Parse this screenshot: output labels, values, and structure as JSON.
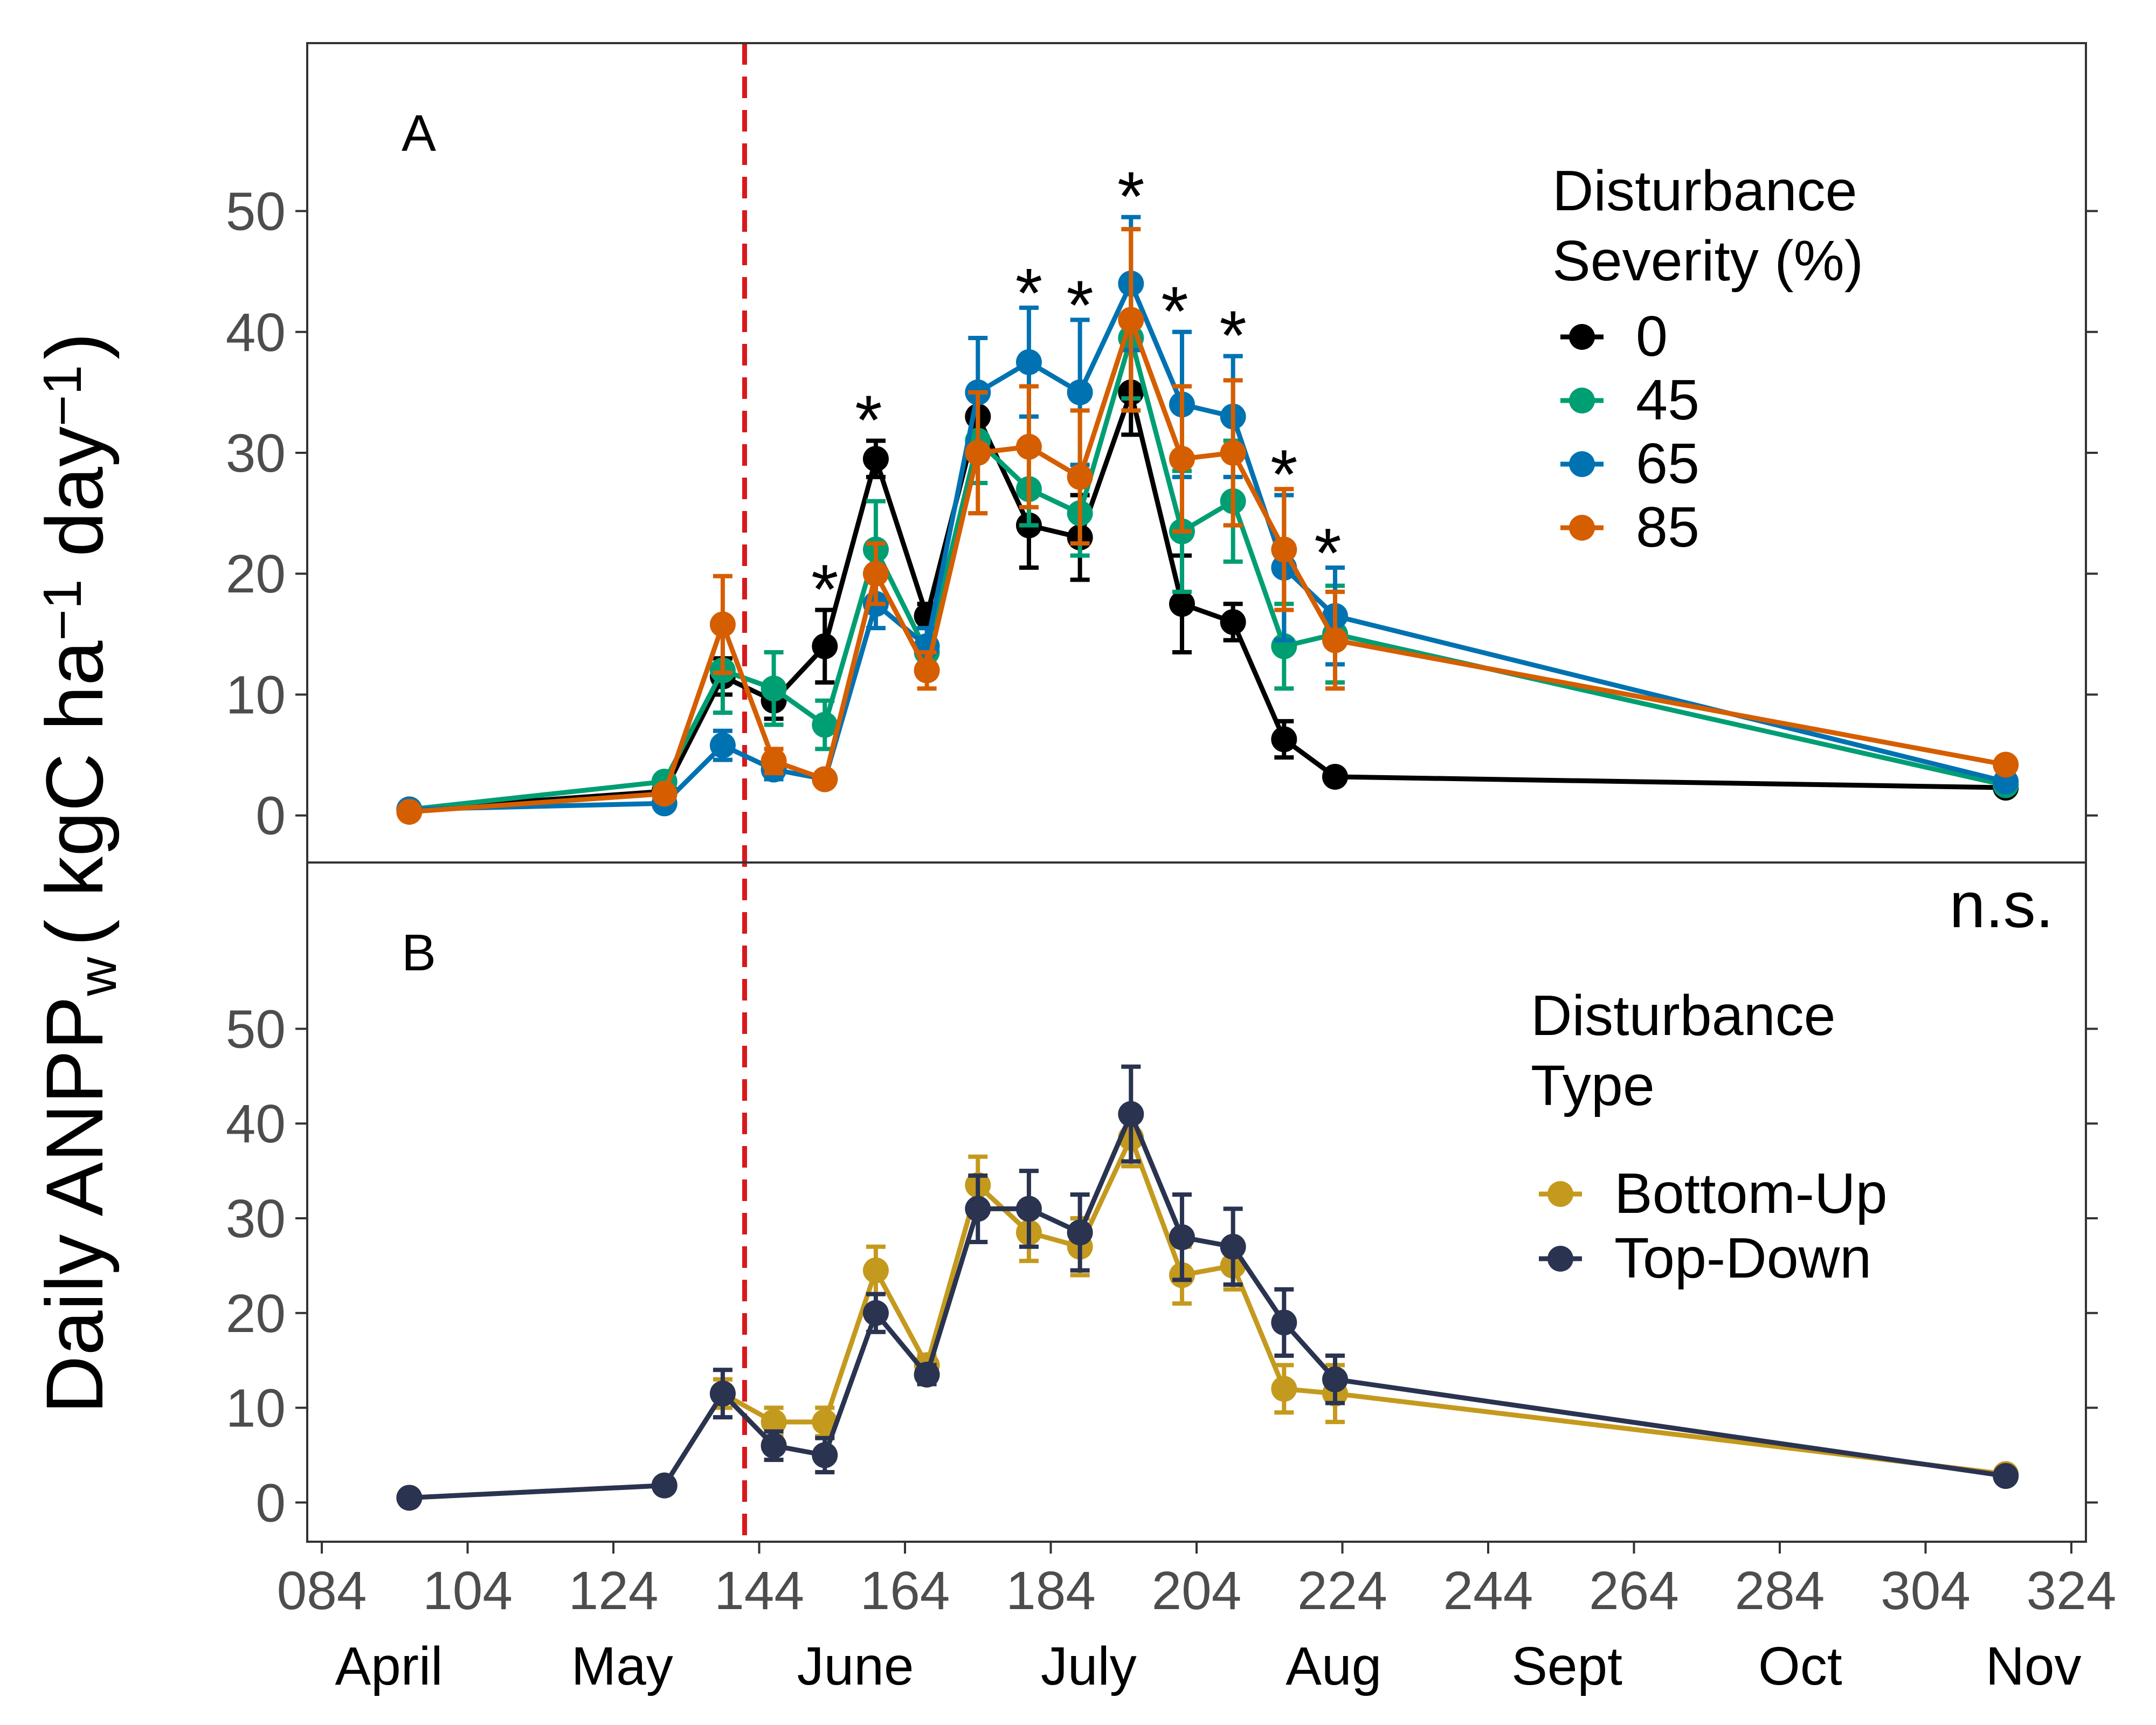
{
  "chart_data": {
    "type": "line",
    "ylabel": "Daily ANPP",
    "ylabel_subscript": "w",
    "ylabel_units": "( kgC ha",
    "ylabel_sup1": "−1",
    "ylabel_mid": " day",
    "ylabel_sup2": "−1",
    "ylabel_close": ")",
    "x_ticks": [
      84,
      104,
      124,
      144,
      164,
      184,
      204,
      224,
      244,
      264,
      284,
      304,
      324
    ],
    "x_tick_labels": [
      "084",
      "104",
      "124",
      "144",
      "164",
      "184",
      "204",
      "224",
      "244",
      "264",
      "284",
      "304",
      "324"
    ],
    "xlim": [
      82,
      326
    ],
    "months": [
      {
        "label": "April",
        "x": 107
      },
      {
        "label": "May",
        "x": 127
      },
      {
        "label": "June",
        "x": 147
      },
      {
        "label": "July",
        "x": 167
      },
      {
        "label": "Aug",
        "x": 188
      },
      {
        "label": "Sept",
        "x": 208
      },
      {
        "label": "Oct",
        "x": 228
      },
      {
        "label": "Nov",
        "x": 248
      }
    ],
    "vline_x": 142,
    "vline_color": "#d7191c",
    "panels": [
      {
        "letter": "A",
        "ylim": [
          -3,
          63
        ],
        "y_ticks": [
          0,
          10,
          20,
          30,
          40,
          50
        ],
        "y_tick_labels": [
          "0",
          "10",
          "20",
          "30",
          "40",
          "50"
        ],
        "annotation": "",
        "legend": {
          "title_lines": [
            "Disturbance",
            "Severity (%)"
          ],
          "entries": [
            {
              "label": "0",
              "color": "#000000"
            },
            {
              "label": "45",
              "color": "#009E73"
            },
            {
              "label": "65",
              "color": "#0072B2"
            },
            {
              "label": "85",
              "color": "#D55E00"
            }
          ]
        },
        "stars": [
          {
            "x": 153,
            "y": 18.5,
            "text": "*"
          },
          {
            "x": 159,
            "y": 32.5,
            "text": "*"
          },
          {
            "x": 181,
            "y": 43,
            "text": "*"
          },
          {
            "x": 188,
            "y": 42,
            "text": "*"
          },
          {
            "x": 195,
            "y": 51,
            "text": "*"
          },
          {
            "x": 201,
            "y": 41.5,
            "text": "*"
          },
          {
            "x": 209,
            "y": 39.5,
            "text": "*"
          },
          {
            "x": 216,
            "y": 28,
            "text": "*"
          },
          {
            "x": 222,
            "y": 21.5,
            "text": "*"
          }
        ],
        "series": [
          {
            "name": "0",
            "color": "#000000",
            "x": [
              96,
              131,
              139,
              146,
              153,
              160,
              167,
              174,
              181,
              188,
              195,
              202,
              209,
              216,
              223,
              315
            ],
            "y": [
              0.5,
              2.0,
              11.5,
              9.5,
              14.0,
              29.5,
              16.5,
              33.0,
              24.0,
              23.0,
              35.0,
              17.5,
              16.0,
              6.3,
              3.2,
              2.3
            ],
            "err": [
              0.3,
              0.5,
              1.5,
              1.5,
              3.0,
              1.5,
              1.0,
              2.0,
              3.5,
              3.5,
              3.5,
              4.0,
              1.5,
              1.5,
              0.3,
              0.3
            ]
          },
          {
            "name": "45",
            "color": "#009E73",
            "x": [
              96,
              131,
              139,
              146,
              153,
              160,
              167,
              174,
              181,
              188,
              195,
              202,
              209,
              216,
              223,
              315
            ],
            "y": [
              0.5,
              2.8,
              12.0,
              10.5,
              7.5,
              22.0,
              13.5,
              31.0,
              27.0,
              25.0,
              39.5,
              23.5,
              26.0,
              14.0,
              15.0,
              2.5
            ],
            "err": [
              0.3,
              0.5,
              3.5,
              3.0,
              2.0,
              4.0,
              1.0,
              3.5,
              3.0,
              3.5,
              5.0,
              5.0,
              5.0,
              3.5,
              4.0,
              0.3
            ]
          },
          {
            "name": "65",
            "color": "#0072B2",
            "x": [
              96,
              131,
              139,
              146,
              153,
              160,
              167,
              174,
              181,
              188,
              195,
              202,
              209,
              216,
              223,
              315
            ],
            "y": [
              0.5,
              1.0,
              5.8,
              3.8,
              3.0,
              17.5,
              14.0,
              35.0,
              37.5,
              35.0,
              44.0,
              34.0,
              33.0,
              20.5,
              16.5,
              2.8
            ],
            "err": [
              0.3,
              0.4,
              1.2,
              0.8,
              0.5,
              2.0,
              1.5,
              4.5,
              4.5,
              6.0,
              5.5,
              6.0,
              5.0,
              6.0,
              4.0,
              0.3
            ]
          },
          {
            "name": "85",
            "color": "#D55E00",
            "x": [
              96,
              131,
              139,
              146,
              153,
              160,
              167,
              174,
              181,
              188,
              195,
              202,
              209,
              216,
              223,
              315
            ],
            "y": [
              0.3,
              1.8,
              15.8,
              4.5,
              3.0,
              20.0,
              12.0,
              30.0,
              30.5,
              28.0,
              41.0,
              29.5,
              30.0,
              22.0,
              14.5,
              4.2
            ],
            "err": [
              0.3,
              0.4,
              4.0,
              1.0,
              0.5,
              2.5,
              1.5,
              5.0,
              5.0,
              5.5,
              7.5,
              6.0,
              6.0,
              5.0,
              4.0,
              0.4
            ]
          }
        ]
      },
      {
        "letter": "B",
        "ylim": [
          -3,
          63
        ],
        "y_ticks": [
          0,
          10,
          20,
          30,
          40,
          50
        ],
        "y_tick_labels": [
          "0",
          "10",
          "20",
          "30",
          "40",
          "50"
        ],
        "annotation": "n.s.",
        "legend": {
          "title_lines": [
            "Disturbance",
            "  Type"
          ],
          "entries": [
            {
              "label": "Bottom-Up",
              "color": "#C49A1E"
            },
            {
              "label": "Top-Down",
              "color": "#2A3350"
            }
          ]
        },
        "stars": [],
        "series": [
          {
            "name": "Bottom-Up",
            "color": "#C49A1E",
            "x": [
              96,
              131,
              139,
              146,
              153,
              160,
              167,
              174,
              181,
              188,
              195,
              202,
              209,
              216,
              223,
              315
            ],
            "y": [
              0.5,
              1.8,
              11.5,
              8.5,
              8.5,
              24.5,
              14.5,
              33.5,
              28.5,
              27.0,
              38.5,
              24.0,
              25.0,
              12.0,
              11.5,
              3.0
            ],
            "err": [
              0.3,
              0.4,
              1.5,
              1.5,
              1.5,
              2.5,
              1.0,
              3.0,
              3.0,
              3.0,
              3.0,
              3.0,
              2.5,
              2.5,
              3.0,
              0.3
            ]
          },
          {
            "name": "Top-Down",
            "color": "#2A3350",
            "x": [
              96,
              131,
              139,
              146,
              153,
              160,
              167,
              174,
              181,
              188,
              195,
              202,
              209,
              216,
              223,
              315
            ],
            "y": [
              0.5,
              1.8,
              11.5,
              6.0,
              5.0,
              20.0,
              13.5,
              31.0,
              31.0,
              28.5,
              41.0,
              28.0,
              27.0,
              19.0,
              13.0,
              2.8
            ],
            "err": [
              0.3,
              0.4,
              2.5,
              1.5,
              1.8,
              2.0,
              1.0,
              3.5,
              4.0,
              4.0,
              5.0,
              4.5,
              4.0,
              3.5,
              2.5,
              0.3
            ]
          }
        ]
      }
    ]
  }
}
